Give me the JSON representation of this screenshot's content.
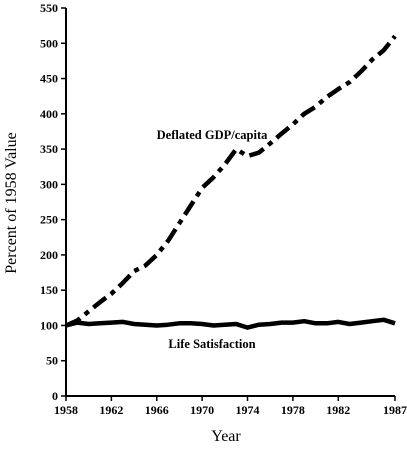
{
  "chart_data": {
    "type": "line",
    "title": "",
    "xlabel": "Year",
    "ylabel": "Percent of 1958 Value",
    "xlim": [
      1958,
      1987
    ],
    "ylim": [
      0,
      550
    ],
    "x_ticks": [
      1958,
      1962,
      1966,
      1970,
      1974,
      1978,
      1982,
      1987
    ],
    "y_ticks": [
      0,
      50,
      100,
      150,
      200,
      250,
      300,
      350,
      400,
      450,
      500,
      550
    ],
    "grid": false,
    "legend": "none",
    "annotations": [
      {
        "text": "Deflated GDP/capita",
        "series": 0
      },
      {
        "text": "Life Satisfaction",
        "series": 1
      }
    ],
    "series": [
      {
        "name": "Deflated GDP/capita",
        "style": "dash-dot",
        "color": "#000000",
        "x": [
          1958,
          1959,
          1960,
          1961,
          1962,
          1963,
          1964,
          1965,
          1966,
          1967,
          1968,
          1969,
          1970,
          1971,
          1972,
          1973,
          1974,
          1975,
          1976,
          1977,
          1978,
          1979,
          1980,
          1981,
          1982,
          1983,
          1984,
          1985,
          1986,
          1987
        ],
        "values": [
          100,
          107,
          120,
          133,
          145,
          160,
          177,
          185,
          200,
          220,
          245,
          270,
          295,
          310,
          328,
          350,
          340,
          345,
          358,
          372,
          385,
          400,
          410,
          424,
          435,
          445,
          460,
          477,
          490,
          510
        ]
      },
      {
        "name": "Life Satisfaction",
        "style": "solid",
        "color": "#000000",
        "x": [
          1958,
          1959,
          1960,
          1961,
          1962,
          1963,
          1964,
          1965,
          1966,
          1967,
          1968,
          1969,
          1970,
          1971,
          1972,
          1973,
          1974,
          1975,
          1976,
          1977,
          1978,
          1979,
          1980,
          1981,
          1982,
          1983,
          1984,
          1985,
          1986,
          1987
        ],
        "values": [
          100,
          104,
          102,
          103,
          104,
          105,
          102,
          101,
          100,
          101,
          103,
          103,
          102,
          100,
          101,
          102,
          97,
          101,
          102,
          104,
          104,
          106,
          103,
          103,
          105,
          102,
          104,
          106,
          108,
          103
        ]
      }
    ]
  }
}
